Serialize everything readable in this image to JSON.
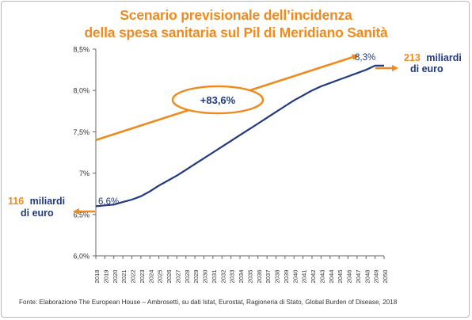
{
  "title": {
    "line1": "Scenario previsionale dell’incidenza",
    "line2": "della spesa sanitaria sul Pil di Meridiano Sanità"
  },
  "footer": "Fonte: Elaborazione The European House – Ambrosetti, su dati Istat, Eurostat, Ragioneria di Stato, Global Burden of Disease, 2018",
  "colors": {
    "orange": "#ef8a1e",
    "navy": "#213a80",
    "axis": "#666666"
  },
  "chart_data": {
    "type": "line",
    "title": "Scenario previsionale dell’incidenza della spesa sanitaria sul Pil di Meridiano Sanità",
    "xlabel": "",
    "ylabel": "",
    "ylim": [
      6.0,
      8.5
    ],
    "yticks": [
      "6,0%",
      "6,5%",
      "7%",
      "7,5%",
      "8,0%",
      "8,5%"
    ],
    "ytick_values": [
      6.0,
      6.5,
      7.0,
      7.5,
      8.0,
      8.5
    ],
    "categories": [
      "2018",
      "2019",
      "2020",
      "2021",
      "2022",
      "2023",
      "2024",
      "2025",
      "2026",
      "2027",
      "2028",
      "2029",
      "2030",
      "2031",
      "2032",
      "2033",
      "2034",
      "2035",
      "2036",
      "2037",
      "2038",
      "2039",
      "2040",
      "2041",
      "2042",
      "2043",
      "2044",
      "2045",
      "2046",
      "2047",
      "2048",
      "2049",
      "2050"
    ],
    "series": [
      {
        "values": [
          6.6,
          6.61,
          6.62,
          6.65,
          6.68,
          6.72,
          6.78,
          6.85,
          6.91,
          6.97,
          7.04,
          7.11,
          7.18,
          7.25,
          7.32,
          7.39,
          7.46,
          7.53,
          7.6,
          7.67,
          7.74,
          7.81,
          7.88,
          7.94,
          8.0,
          8.05,
          8.09,
          8.13,
          8.17,
          8.21,
          8.25,
          8.3,
          8.3
        ]
      }
    ],
    "trend_arrow": {
      "from": [
        2018,
        7.4
      ],
      "to": [
        2047,
        8.42
      ]
    },
    "annotations": {
      "start_value": "6,6%",
      "end_value": "8,3%",
      "growth": "+83,6%",
      "left_amount": "116",
      "left_unit_line1": "miliardi",
      "left_unit_line2": "di euro",
      "right_amount": "213",
      "right_unit_line1": "miliardi",
      "right_unit_line2": "di euro"
    }
  }
}
